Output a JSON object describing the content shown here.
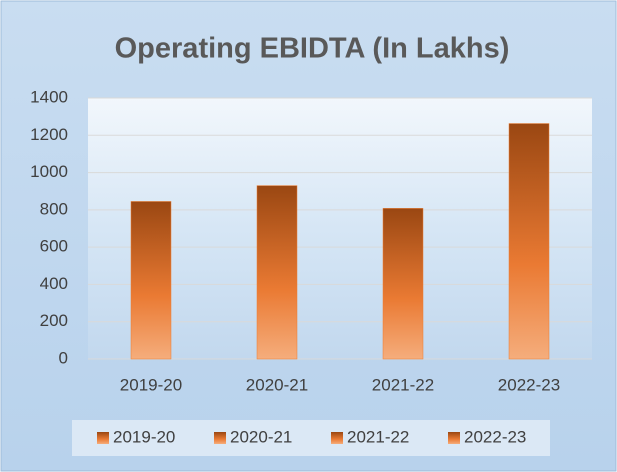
{
  "chart_data": {
    "type": "bar",
    "title": "Operating EBIDTA (In Lakhs)",
    "categories": [
      "2019-20",
      "2020-21",
      "2021-22",
      "2022-23"
    ],
    "values": [
      845,
      930,
      808,
      1263
    ],
    "color": "#ed7d31",
    "ylim": [
      0,
      1400
    ],
    "yticks": [
      0,
      200,
      400,
      600,
      800,
      1000,
      1200,
      1400
    ],
    "grid": true,
    "legend": "bottom"
  }
}
